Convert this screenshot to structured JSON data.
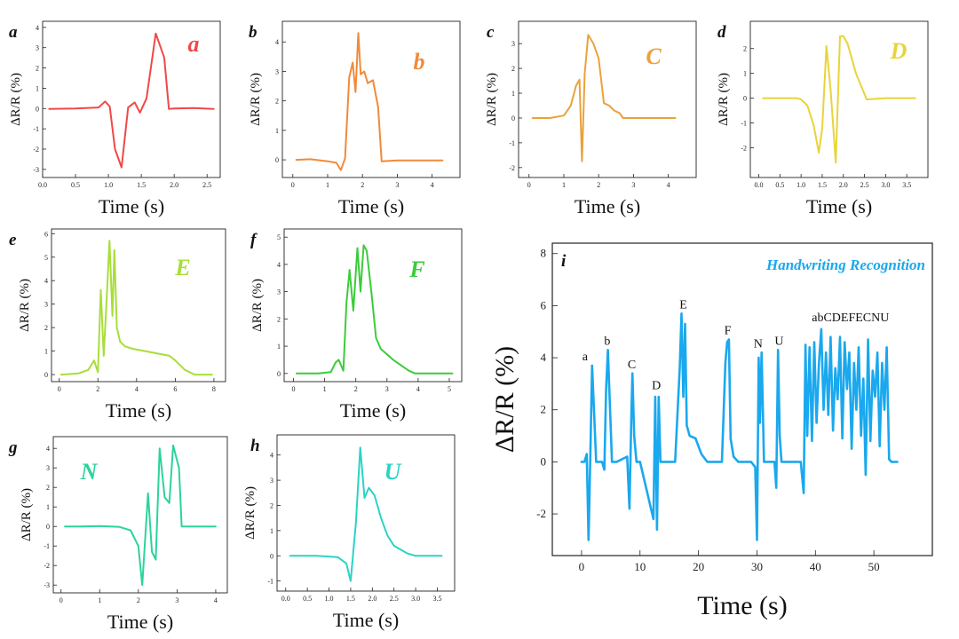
{
  "chart_data": [
    {
      "id": "a",
      "type": "line",
      "panel_label": "a",
      "letter": "a",
      "color": "#f04848",
      "xlabel": "Time (s)",
      "ylabel": "ΔR/R (%)",
      "xlim": [
        0,
        2.7
      ],
      "ylim": [
        -3.4,
        4.3
      ],
      "xticks": [
        0.0,
        0.5,
        1.0,
        1.5,
        2.0,
        2.5
      ],
      "xtick_labels": [
        "0.0",
        "0.5",
        "1.0",
        "1.5",
        "2.0",
        "2.5"
      ],
      "yticks": [
        -3,
        -2,
        -1,
        0,
        1,
        2,
        3,
        4
      ],
      "ytick_labels": [
        "-3",
        "-2",
        "-1",
        "0",
        "1",
        "2",
        "3",
        "4"
      ],
      "x": [
        0.1,
        0.5,
        0.85,
        0.95,
        1.02,
        1.1,
        1.2,
        1.3,
        1.4,
        1.48,
        1.58,
        1.72,
        1.85,
        1.92,
        2.0,
        2.3,
        2.6
      ],
      "y": [
        -0.02,
        0.0,
        0.05,
        0.35,
        0.1,
        -2.0,
        -2.9,
        0.05,
        0.3,
        -0.2,
        0.5,
        3.7,
        2.5,
        -0.02,
        0.0,
        0.02,
        -0.02
      ]
    },
    {
      "id": "b",
      "type": "line",
      "panel_label": "b",
      "letter": "b",
      "color": "#f08a3a",
      "xlabel": "Time (s)",
      "ylabel": "ΔR/R (%)",
      "xlim": [
        -0.3,
        4.8
      ],
      "ylim": [
        -0.6,
        4.7
      ],
      "xticks": [
        0,
        1,
        2,
        3,
        4
      ],
      "xtick_labels": [
        "0",
        "1",
        "2",
        "3",
        "4"
      ],
      "yticks": [
        0,
        1,
        2,
        3,
        4
      ],
      "ytick_labels": [
        "0",
        "1",
        "2",
        "3",
        "4"
      ],
      "x": [
        0.1,
        0.5,
        1.0,
        1.25,
        1.38,
        1.5,
        1.62,
        1.72,
        1.8,
        1.88,
        1.95,
        2.05,
        2.15,
        2.3,
        2.45,
        2.55,
        3.0,
        4.3
      ],
      "y": [
        0.0,
        0.02,
        -0.05,
        -0.1,
        -0.35,
        0.05,
        2.8,
        3.3,
        2.3,
        4.3,
        2.9,
        3.0,
        2.6,
        2.7,
        1.8,
        -0.05,
        -0.02,
        -0.02
      ]
    },
    {
      "id": "c",
      "type": "line",
      "panel_label": "c",
      "letter": "C",
      "color": "#eaa23a",
      "xlabel": "Time (s)",
      "ylabel": "ΔR/R (%)",
      "xlim": [
        -0.3,
        4.8
      ],
      "ylim": [
        -2.4,
        3.9
      ],
      "xticks": [
        0,
        1,
        2,
        3,
        4
      ],
      "xtick_labels": [
        "0",
        "1",
        "2",
        "3",
        "4"
      ],
      "yticks": [
        -2,
        -1,
        0,
        1,
        2,
        3
      ],
      "ytick_labels": [
        "-2",
        "-1",
        "0",
        "1",
        "2",
        "3"
      ],
      "x": [
        0.1,
        0.6,
        1.0,
        1.2,
        1.35,
        1.45,
        1.52,
        1.6,
        1.7,
        1.85,
        2.0,
        2.15,
        2.3,
        2.45,
        2.6,
        2.7,
        3.0,
        4.2
      ],
      "y": [
        0.0,
        0.0,
        0.1,
        0.5,
        1.3,
        1.55,
        -1.75,
        1.8,
        3.35,
        3.0,
        2.4,
        0.6,
        0.5,
        0.3,
        0.2,
        0.0,
        0.0,
        0.0
      ]
    },
    {
      "id": "d",
      "type": "line",
      "panel_label": "d",
      "letter": "D",
      "color": "#e8d43a",
      "xlabel": "Time (s)",
      "ylabel": "ΔR/R (%)",
      "xlim": [
        -0.2,
        4.0
      ],
      "ylim": [
        -3.2,
        3.1
      ],
      "xticks": [
        0.0,
        0.5,
        1.0,
        1.5,
        2.0,
        2.5,
        3.0,
        3.5
      ],
      "xtick_labels": [
        "0.0",
        "0.5",
        "1.0",
        "1.5",
        "2.0",
        "2.5",
        "3.0",
        "3.5"
      ],
      "yticks": [
        -2,
        -1,
        0,
        1,
        2
      ],
      "ytick_labels": [
        "-2",
        "-1",
        "0",
        "1",
        "2"
      ],
      "x": [
        0.1,
        0.5,
        0.9,
        1.0,
        1.15,
        1.3,
        1.42,
        1.5,
        1.6,
        1.7,
        1.82,
        1.92,
        2.0,
        2.1,
        2.3,
        2.55,
        3.0,
        3.7
      ],
      "y": [
        0.0,
        0.0,
        0.0,
        -0.05,
        -0.3,
        -1.1,
        -2.2,
        -1.2,
        2.1,
        0.3,
        -2.6,
        2.5,
        2.5,
        2.2,
        1.0,
        -0.05,
        0.0,
        0.0
      ]
    },
    {
      "id": "e",
      "type": "line",
      "panel_label": "e",
      "letter": "E",
      "color": "#a8de3a",
      "xlabel": "Time (s)",
      "ylabel": "ΔR/R (%)",
      "xlim": [
        -0.4,
        8.6
      ],
      "ylim": [
        -0.3,
        6.2
      ],
      "xticks": [
        0,
        2,
        4,
        6,
        8
      ],
      "xtick_labels": [
        "0",
        "2",
        "4",
        "6",
        "8"
      ],
      "yticks": [
        0,
        1,
        2,
        3,
        4,
        5,
        6
      ],
      "ytick_labels": [
        "0",
        "1",
        "2",
        "3",
        "4",
        "5",
        "6"
      ],
      "x": [
        0.1,
        1.0,
        1.5,
        1.8,
        2.0,
        2.15,
        2.3,
        2.45,
        2.6,
        2.75,
        2.85,
        2.98,
        3.15,
        3.4,
        3.8,
        5.7,
        6.0,
        6.5,
        7.0,
        7.9
      ],
      "y": [
        0.0,
        0.05,
        0.2,
        0.6,
        0.1,
        3.6,
        0.8,
        3.2,
        5.7,
        2.5,
        5.3,
        2.0,
        1.4,
        1.2,
        1.1,
        0.8,
        0.6,
        0.2,
        0.0,
        0.0
      ]
    },
    {
      "id": "f",
      "type": "line",
      "panel_label": "f",
      "letter": "F",
      "color": "#3ccc3a",
      "xlabel": "Time (s)",
      "ylabel": "ΔR/R (%)",
      "xlim": [
        -0.3,
        5.4
      ],
      "ylim": [
        -0.3,
        5.3
      ],
      "xticks": [
        0,
        1,
        2,
        3,
        4,
        5
      ],
      "xtick_labels": [
        "0",
        "1",
        "2",
        "3",
        "4",
        "5"
      ],
      "yticks": [
        0,
        1,
        2,
        3,
        4,
        5
      ],
      "ytick_labels": [
        "0",
        "1",
        "2",
        "3",
        "4",
        "5"
      ],
      "x": [
        0.1,
        0.8,
        1.2,
        1.35,
        1.45,
        1.6,
        1.7,
        1.8,
        1.92,
        2.05,
        2.15,
        2.25,
        2.35,
        2.5,
        2.65,
        2.8,
        3.2,
        3.7,
        3.9,
        5.1
      ],
      "y": [
        0.0,
        0.0,
        0.05,
        0.4,
        0.5,
        0.1,
        2.6,
        3.8,
        2.3,
        4.6,
        3.0,
        4.7,
        4.5,
        3.0,
        1.3,
        0.9,
        0.5,
        0.1,
        0.0,
        0.0
      ]
    },
    {
      "id": "g",
      "type": "line",
      "panel_label": "g",
      "letter": "N",
      "color": "#2ad49a",
      "xlabel": "Time (s)",
      "ylabel": "ΔR/R (%)",
      "xlim": [
        -0.2,
        4.3
      ],
      "ylim": [
        -3.4,
        4.6
      ],
      "xticks": [
        0,
        1,
        2,
        3,
        4
      ],
      "xtick_labels": [
        "0",
        "1",
        "2",
        "3",
        "4"
      ],
      "yticks": [
        -3,
        -2,
        -1,
        0,
        1,
        2,
        3,
        4
      ],
      "ytick_labels": [
        "-3",
        "-2",
        "-1",
        "0",
        "1",
        "2",
        "3",
        "4"
      ],
      "x": [
        0.1,
        0.5,
        1.0,
        1.5,
        1.8,
        2.0,
        2.1,
        2.25,
        2.35,
        2.45,
        2.55,
        2.68,
        2.8,
        2.9,
        3.05,
        3.12,
        3.6,
        4.0
      ],
      "y": [
        0.0,
        0.0,
        0.02,
        -0.02,
        -0.2,
        -1.0,
        -3.0,
        1.7,
        -1.3,
        -1.7,
        4.0,
        1.5,
        1.2,
        4.15,
        3.0,
        0.0,
        0.0,
        0.0
      ]
    },
    {
      "id": "h",
      "type": "line",
      "panel_label": "h",
      "letter": "U",
      "color": "#2ad4c4",
      "xlabel": "Time (s)",
      "ylabel": "ΔR/R (%)",
      "xlim": [
        -0.2,
        3.9
      ],
      "ylim": [
        -1.4,
        4.8
      ],
      "xticks": [
        0.0,
        0.5,
        1.0,
        1.5,
        2.0,
        2.5,
        3.0,
        3.5
      ],
      "xtick_labels": [
        "0.0",
        "0.5",
        "1.0",
        "1.5",
        "2.0",
        "2.5",
        "3.0",
        "3.5"
      ],
      "yticks": [
        -1,
        0,
        1,
        2,
        3,
        4
      ],
      "ytick_labels": [
        "-1",
        "0",
        "1",
        "2",
        "3",
        "4"
      ],
      "x": [
        0.1,
        0.7,
        1.2,
        1.4,
        1.5,
        1.62,
        1.72,
        1.82,
        1.92,
        2.05,
        2.2,
        2.35,
        2.5,
        2.8,
        3.0,
        3.6
      ],
      "y": [
        0.0,
        0.0,
        -0.05,
        -0.3,
        -1.0,
        1.3,
        4.3,
        2.3,
        2.7,
        2.4,
        1.5,
        0.8,
        0.4,
        0.1,
        0.0,
        0.0
      ]
    },
    {
      "id": "i",
      "type": "line",
      "panel_label": "i",
      "title": "Handwriting Recognition",
      "color": "#1aa8ee",
      "xlabel": "Time (s)",
      "ylabel": "ΔR/R (%)",
      "xlim": [
        -5,
        60
      ],
      "ylim": [
        -3.6,
        8.4
      ],
      "xticks": [
        0,
        10,
        20,
        30,
        40,
        50
      ],
      "xtick_labels": [
        "0",
        "10",
        "20",
        "30",
        "40",
        "50"
      ],
      "yticks": [
        -2,
        0,
        2,
        4,
        6,
        8
      ],
      "ytick_labels": [
        "-2",
        "0",
        "2",
        "4",
        "6",
        "8"
      ],
      "x": [
        0.0,
        0.5,
        0.9,
        1.2,
        1.5,
        1.8,
        2.5,
        3.5,
        3.9,
        4.2,
        4.5,
        4.8,
        5.2,
        6.0,
        7.8,
        8.2,
        8.5,
        8.7,
        9.0,
        9.4,
        10.0,
        12.3,
        12.6,
        12.9,
        13.2,
        13.5,
        14.0,
        16.0,
        16.8,
        17.1,
        17.4,
        17.7,
        18.0,
        18.5,
        19.5,
        20.5,
        21.5,
        24.0,
        24.6,
        24.9,
        25.2,
        25.5,
        26.0,
        26.8,
        29.0,
        29.7,
        30.0,
        30.3,
        30.5,
        30.8,
        31.2,
        33.0,
        33.3,
        33.6,
        33.9,
        34.2,
        34.5,
        37.5,
        38.0,
        38.3,
        38.6,
        39.0,
        39.4,
        39.8,
        40.2,
        40.6,
        41.0,
        41.4,
        41.8,
        42.2,
        42.6,
        43.0,
        43.4,
        43.8,
        44.2,
        44.6,
        45.0,
        45.4,
        45.8,
        46.2,
        46.6,
        47.0,
        47.4,
        47.8,
        48.2,
        48.6,
        49.0,
        49.4,
        49.8,
        50.2,
        50.6,
        51.0,
        51.4,
        51.8,
        52.2,
        52.6,
        53.0,
        53.5,
        54.0
      ],
      "y": [
        0.0,
        0.0,
        0.3,
        -3.0,
        0.2,
        3.7,
        0.0,
        0.0,
        -0.3,
        2.8,
        4.3,
        2.5,
        0.0,
        0.0,
        0.2,
        -1.8,
        1.6,
        3.4,
        1.0,
        0.0,
        0.0,
        -2.2,
        2.5,
        -2.6,
        2.5,
        0.0,
        0.0,
        0.0,
        3.6,
        5.7,
        2.5,
        5.3,
        1.4,
        1.0,
        0.9,
        0.3,
        0.0,
        0.0,
        3.8,
        4.6,
        4.7,
        0.9,
        0.2,
        0.0,
        0.0,
        -0.2,
        -3.0,
        4.0,
        1.5,
        4.2,
        0.0,
        0.0,
        -1.0,
        4.3,
        1.0,
        0.0,
        0.0,
        0.0,
        -1.2,
        4.5,
        1.0,
        4.4,
        0.8,
        4.6,
        1.5,
        3.8,
        5.1,
        2.0,
        4.2,
        1.8,
        4.8,
        1.2,
        3.6,
        2.4,
        4.8,
        0.9,
        4.6,
        2.8,
        4.2,
        0.5,
        3.8,
        2.0,
        4.4,
        1.0,
        3.2,
        -0.5,
        4.7,
        0.8,
        3.5,
        2.5,
        4.2,
        0.6,
        3.8,
        2.0,
        4.4,
        0.1,
        0.0,
        0.0,
        0.0
      ],
      "annotations": [
        {
          "text": "a",
          "x": 0.6,
          "y": 3.9
        },
        {
          "text": "b",
          "x": 4.4,
          "y": 4.5
        },
        {
          "text": "C",
          "x": 8.6,
          "y": 3.6
        },
        {
          "text": "D",
          "x": 12.8,
          "y": 2.8
        },
        {
          "text": "E",
          "x": 17.4,
          "y": 5.9
        },
        {
          "text": "F",
          "x": 25.0,
          "y": 4.9
        },
        {
          "text": "N",
          "x": 30.2,
          "y": 4.4
        },
        {
          "text": "U",
          "x": 33.8,
          "y": 4.5
        },
        {
          "text": "abCDEFECNU",
          "x": 46.0,
          "y": 5.4
        }
      ]
    }
  ]
}
